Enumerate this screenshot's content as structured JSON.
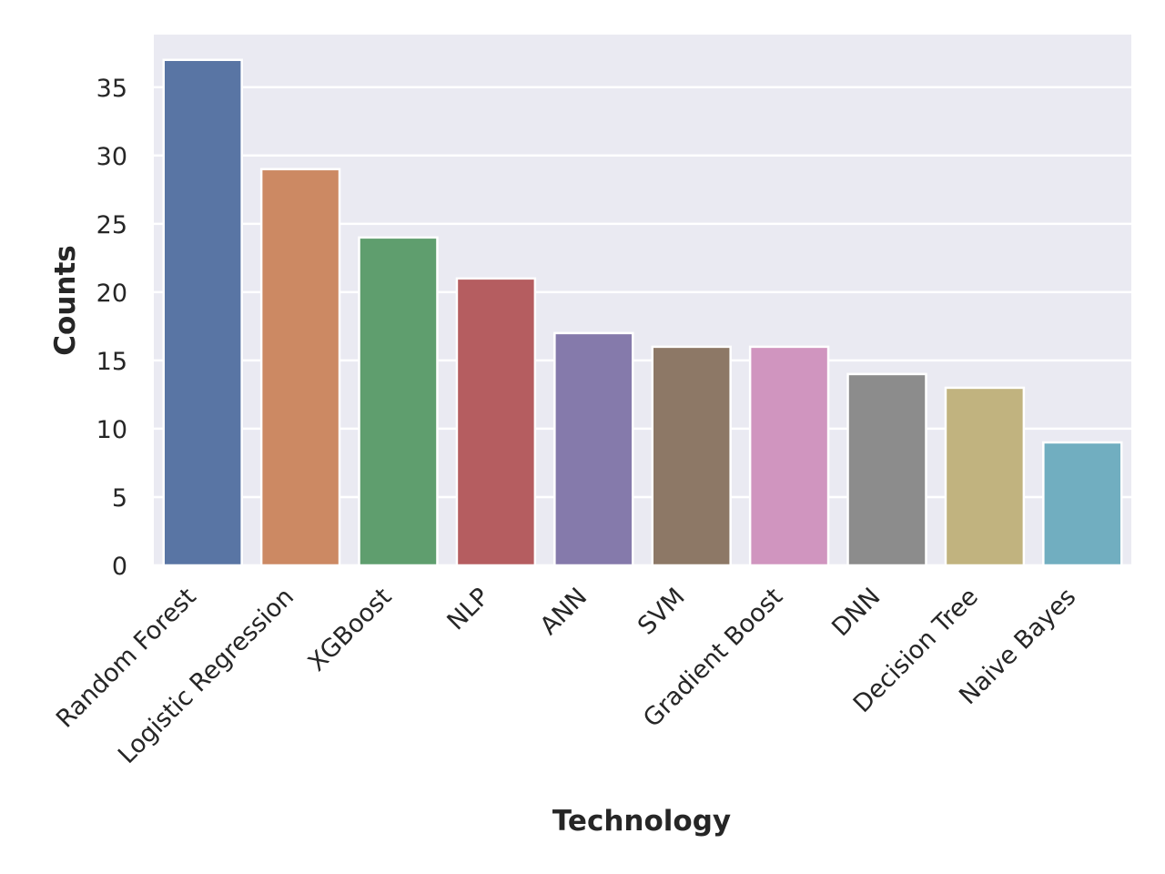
{
  "chart_data": {
    "type": "bar",
    "xlabel": "Technology",
    "ylabel": "Counts",
    "categories": [
      "Random Forest",
      "Logistic Regression",
      "XGBoost",
      "NLP",
      "ANN",
      "SVM",
      "Gradient Boost",
      "DNN",
      "Decision Tree",
      "Naive Bayes"
    ],
    "values": [
      37,
      29,
      24,
      21,
      17,
      16,
      16,
      14,
      13,
      9
    ],
    "colors": [
      "#5975a4",
      "#cc8963",
      "#5f9e6e",
      "#b55d60",
      "#857aab",
      "#8d7866",
      "#d095bf",
      "#8c8c8c",
      "#c1b37f",
      "#71aec0"
    ],
    "yticks": [
      0,
      5,
      10,
      15,
      20,
      25,
      30,
      35
    ],
    "ylim": [
      0,
      38.85
    ],
    "grid": true,
    "background": "#eaeaf2",
    "grid_color": "#ffffff"
  }
}
